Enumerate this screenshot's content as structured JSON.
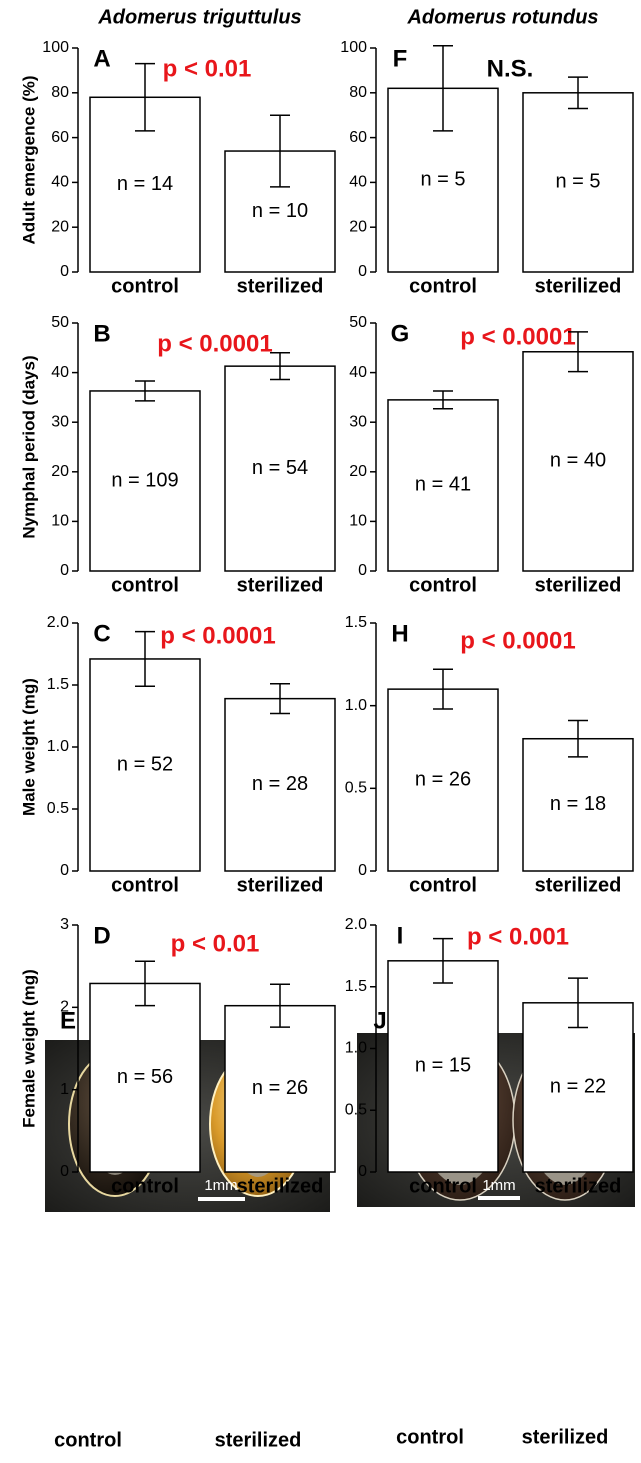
{
  "species_titles": [
    "Adomerus triguttulus",
    "Adomerus rotundus"
  ],
  "chart_data": [
    {
      "type": "bar",
      "panel": "A",
      "ylabel": "Adult emergence (%)",
      "annotation": "p < 0.01",
      "annotation_color": "#e8161b",
      "categories": [
        "control",
        "sterilized"
      ],
      "values": [
        78,
        54
      ],
      "errors": [
        15,
        16
      ],
      "n_labels": [
        "n = 14",
        "n = 10"
      ],
      "ylim": [
        0,
        100
      ],
      "yticks": [
        0,
        20,
        40,
        60,
        80,
        100
      ]
    },
    {
      "type": "bar",
      "panel": "F",
      "annotation": "N.S.",
      "annotation_color": "#000000",
      "categories": [
        "control",
        "sterilized"
      ],
      "values": [
        82,
        80
      ],
      "errors": [
        19,
        7
      ],
      "n_labels": [
        "n = 5",
        "n = 5"
      ],
      "ylim": [
        0,
        100
      ],
      "yticks": [
        0,
        20,
        40,
        60,
        80,
        100
      ]
    },
    {
      "type": "bar",
      "panel": "B",
      "ylabel": "Nymphal period (days)",
      "annotation": "p < 0.0001",
      "annotation_color": "#e8161b",
      "categories": [
        "control",
        "sterilized"
      ],
      "values": [
        36.3,
        41.3
      ],
      "errors": [
        2,
        2.7
      ],
      "n_labels": [
        "n = 109",
        "n = 54"
      ],
      "ylim": [
        0,
        50
      ],
      "yticks": [
        0,
        10,
        20,
        30,
        40,
        50
      ]
    },
    {
      "type": "bar",
      "panel": "G",
      "annotation": "p < 0.0001",
      "annotation_color": "#e8161b",
      "categories": [
        "control",
        "sterilized"
      ],
      "values": [
        34.5,
        44.2
      ],
      "errors": [
        1.8,
        4
      ],
      "n_labels": [
        "n = 41",
        "n = 40"
      ],
      "ylim": [
        0,
        50
      ],
      "yticks": [
        0,
        10,
        20,
        30,
        40,
        50
      ]
    },
    {
      "type": "bar",
      "panel": "C",
      "ylabel": "Male weight (mg)",
      "annotation": "p < 0.0001",
      "annotation_color": "#e8161b",
      "categories": [
        "control",
        "sterilized"
      ],
      "values": [
        1.71,
        1.39
      ],
      "errors": [
        0.22,
        0.12
      ],
      "n_labels": [
        "n = 52",
        "n = 28"
      ],
      "ylim": [
        0,
        2
      ],
      "yticks": [
        0,
        0.5,
        {
          "value": 1,
          "label": "1.0"
        },
        1.5,
        {
          "value": 2,
          "label": "2.0"
        }
      ]
    },
    {
      "type": "bar",
      "panel": "H",
      "annotation": "p < 0.0001",
      "annotation_color": "#e8161b",
      "categories": [
        "control",
        "sterilized"
      ],
      "values": [
        1.1,
        0.8
      ],
      "errors": [
        0.12,
        0.11
      ],
      "n_labels": [
        "n = 26",
        "n = 18"
      ],
      "ylim": [
        0,
        1.5
      ],
      "yticks": [
        0,
        0.5,
        {
          "value": 1,
          "label": "1.0"
        },
        1.5
      ]
    },
    {
      "type": "bar",
      "panel": "D",
      "ylabel": "Female weight (mg)",
      "annotation": "p < 0.01",
      "annotation_color": "#e8161b",
      "categories": [
        "control",
        "sterilized"
      ],
      "values": [
        2.29,
        2.02
      ],
      "errors": [
        0.27,
        0.26
      ],
      "n_labels": [
        "n = 56",
        "n = 26"
      ],
      "ylim": [
        0,
        3
      ],
      "yticks": [
        0,
        1,
        2,
        3
      ]
    },
    {
      "type": "bar",
      "panel": "I",
      "annotation": "p < 0.001",
      "annotation_color": "#e8161b",
      "categories": [
        "control",
        "sterilized"
      ],
      "values": [
        1.71,
        1.37
      ],
      "errors": [
        0.18,
        0.2
      ],
      "n_labels": [
        "n = 15",
        "n = 22"
      ],
      "ylim": [
        0,
        2
      ],
      "yticks": [
        0,
        0.5,
        {
          "value": 1,
          "label": "1.0"
        },
        1.5,
        {
          "value": 2,
          "label": "2.0"
        }
      ]
    }
  ],
  "photos": [
    {
      "panel": "E",
      "scale": "1mm",
      "labels": [
        "control",
        "sterilized"
      ]
    },
    {
      "panel": "J",
      "scale": "1mm",
      "labels": [
        "control",
        "sterilized"
      ]
    }
  ]
}
